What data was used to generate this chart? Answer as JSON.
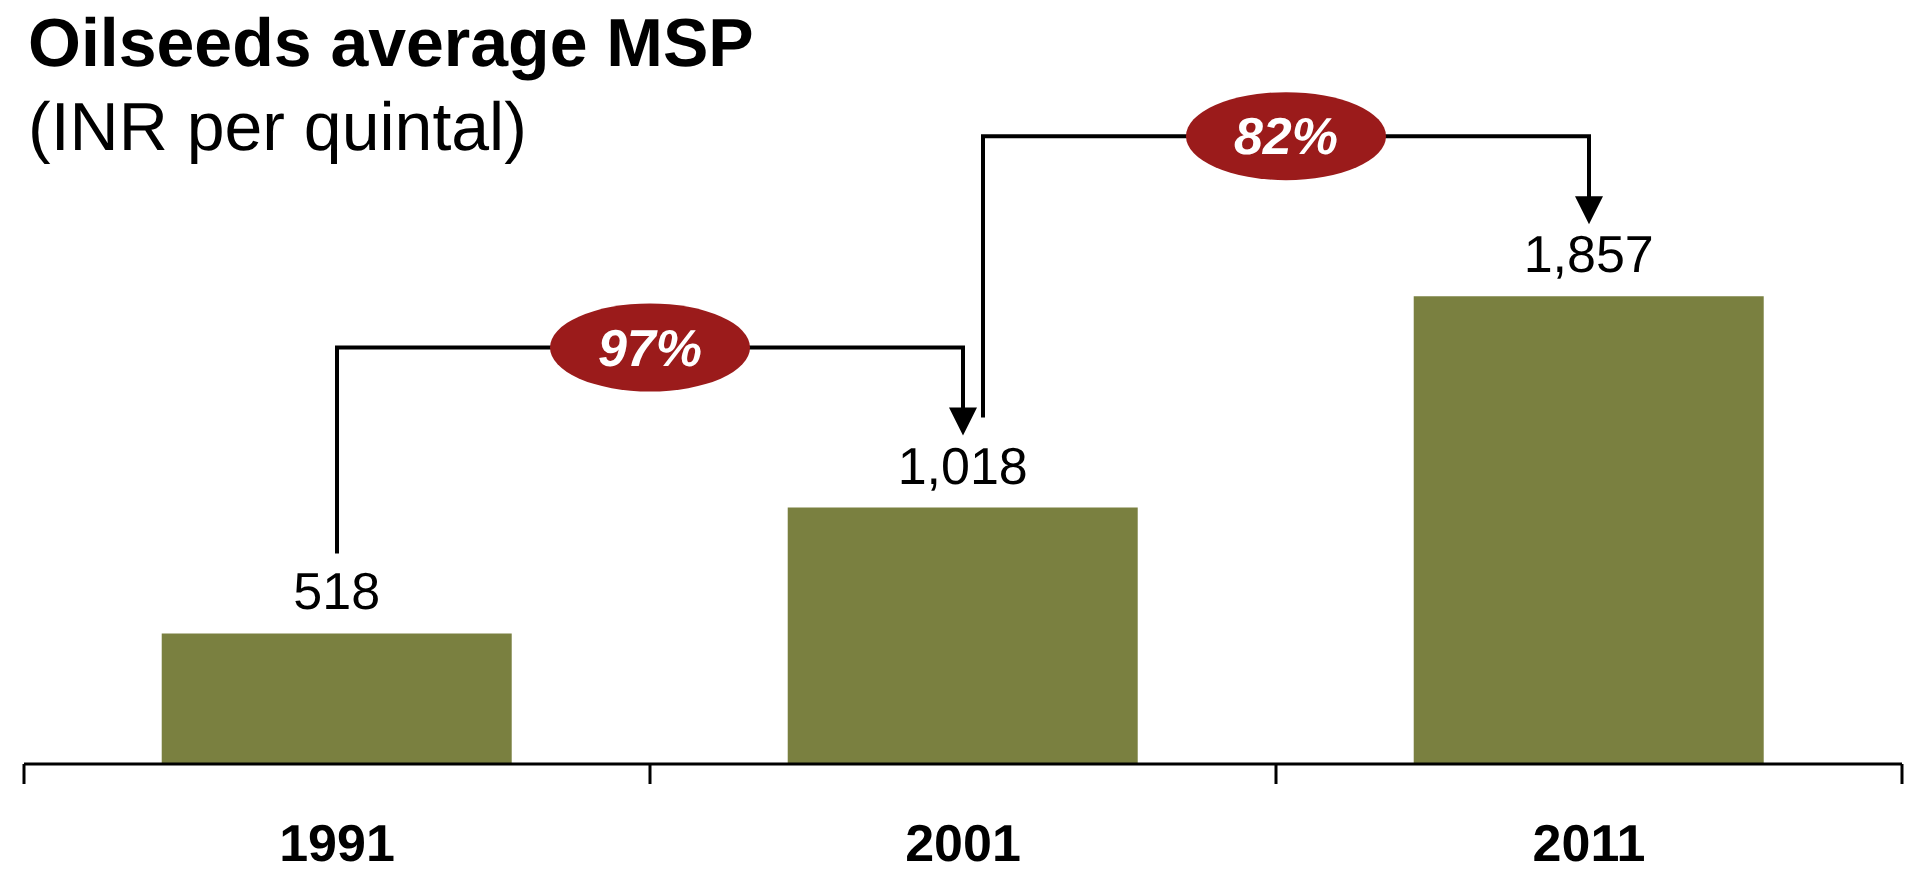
{
  "chart_data": {
    "type": "bar",
    "title": "Oilseeds average MSP",
    "subtitle": "(INR per quintal)",
    "categories": [
      "1991",
      "2001",
      "2011"
    ],
    "values": [
      518,
      1018,
      1857
    ],
    "value_labels": [
      "518",
      "1,018",
      "1,857"
    ],
    "color": "#7a8040",
    "annotations": [
      "97%",
      "82%"
    ]
  }
}
